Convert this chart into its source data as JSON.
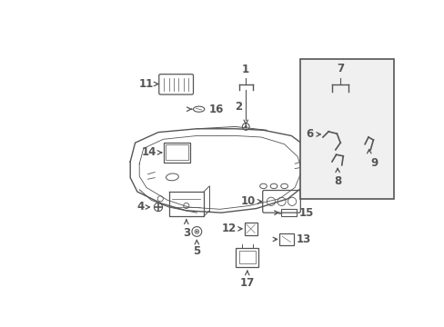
{
  "bg_color": "#ffffff",
  "line_color": "#555555",
  "fig_width": 4.89,
  "fig_height": 3.6,
  "dpi": 100,
  "label_fontsize": 8.5
}
